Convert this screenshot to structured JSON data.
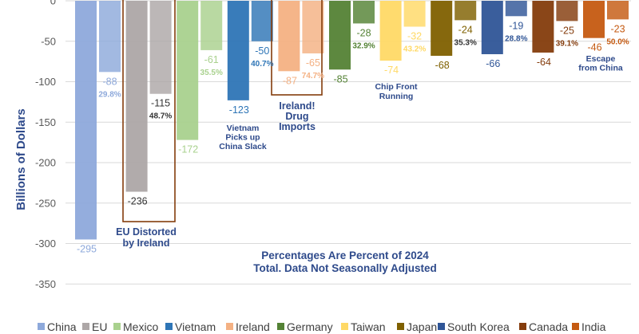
{
  "chart_data": {
    "type": "bar",
    "ylabel": "Billions of Dollars",
    "ylim": [
      -350,
      0
    ],
    "yticks": [
      0,
      -50,
      -100,
      -150,
      -200,
      -250,
      -300,
      -350
    ],
    "grid": true,
    "legend_position": "bottom",
    "categories": [
      "China",
      "EU",
      "Mexico",
      "Vietnam",
      "Ireland",
      "Germany",
      "Taiwan",
      "Japan",
      "South Korea",
      "Canada",
      "India"
    ],
    "colors": [
      "#8EA9DB",
      "#ADA7A7",
      "#A9D18E",
      "#2E75B6",
      "#F4B183",
      "#548235",
      "#FFD966",
      "#7F6000",
      "#2F5597",
      "#843C0C",
      "#C55A11"
    ],
    "series": [
      {
        "values": [
          -295,
          -236,
          -172,
          -123,
          -87,
          -85,
          -74,
          -68,
          -66,
          -64,
          -46
        ],
        "labels": [
          "-295",
          "-236",
          "-172",
          "-123",
          "-87",
          "-85",
          "-74",
          "-68",
          "-66",
          "-64",
          "-46"
        ]
      },
      {
        "values": [
          -88,
          -115,
          -61,
          -50,
          -65,
          -28,
          -32,
          -24,
          -19,
          -25,
          -23
        ],
        "labels": [
          "-88",
          "-115",
          "-61",
          "-50",
          "-65",
          "-28",
          "-32",
          "-24",
          "-19",
          "-25",
          "-23"
        ],
        "percent_labels": [
          "29.8%",
          "48.7%",
          "35.5%",
          "40.7%",
          "74.7%",
          "32.9%",
          "43.2%",
          "35.3%",
          "28.8%",
          "39.1%",
          "50.0%"
        ]
      }
    ],
    "annotations": {
      "eu": [
        "EU Distorted",
        "by Ireland"
      ],
      "vietnam": [
        "Vietnam",
        "Picks up",
        "China Slack"
      ],
      "ireland": [
        "Ireland!",
        "Drug",
        "Imports"
      ],
      "taiwan": [
        "Chip Front",
        "Running"
      ],
      "india": [
        "Escape",
        "from China"
      ],
      "note": [
        "Percentages Are Percent of 2024",
        "Total. Data Not Seasonally Adjusted"
      ]
    }
  }
}
